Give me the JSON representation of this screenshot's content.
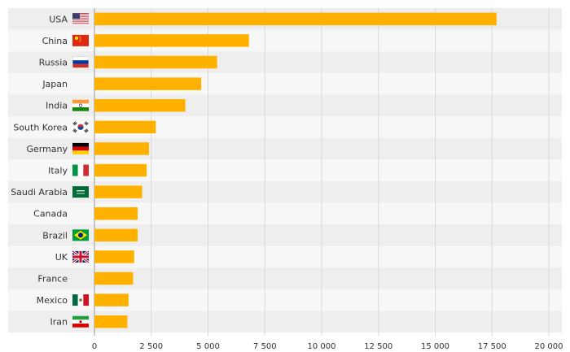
{
  "colors": {
    "bar": "#FFB100",
    "band_alt": "#EEEEEE",
    "band": "#F7F7F7",
    "grid": "#D9D9D9",
    "axis": "#999999",
    "text": "#333333"
  },
  "chart_data": {
    "type": "bar",
    "orientation": "horizontal",
    "categories": [
      "USA",
      "China",
      "Russia",
      "Japan",
      "India",
      "South Korea",
      "Germany",
      "Italy",
      "Saudi Arabia",
      "Canada",
      "Brazil",
      "UK",
      "France",
      "Mexico",
      "Iran"
    ],
    "flags": [
      "usa-flag",
      "china-flag",
      "russia-flag",
      "",
      "india-flag",
      "south-korea-flag",
      "germany-flag",
      "italy-flag",
      "saudi-arabia-flag",
      "",
      "brazil-flag",
      "uk-flag",
      "",
      "mexico-flag",
      "iran-flag"
    ],
    "values": [
      17700,
      6800,
      5400,
      4700,
      4000,
      2700,
      2400,
      2300,
      2100,
      1900,
      1900,
      1750,
      1700,
      1500,
      1450
    ],
    "xlim": [
      0,
      20000
    ],
    "xticks": [
      0,
      2500,
      5000,
      7500,
      10000,
      12500,
      15000,
      17500,
      20000
    ],
    "xtick_labels": [
      "0",
      "2 500",
      "5 000",
      "7 500",
      "10 000",
      "12 500",
      "15 000",
      "17 500",
      "20 000"
    ],
    "grid": true,
    "title": "",
    "xlabel": "",
    "ylabel": ""
  }
}
